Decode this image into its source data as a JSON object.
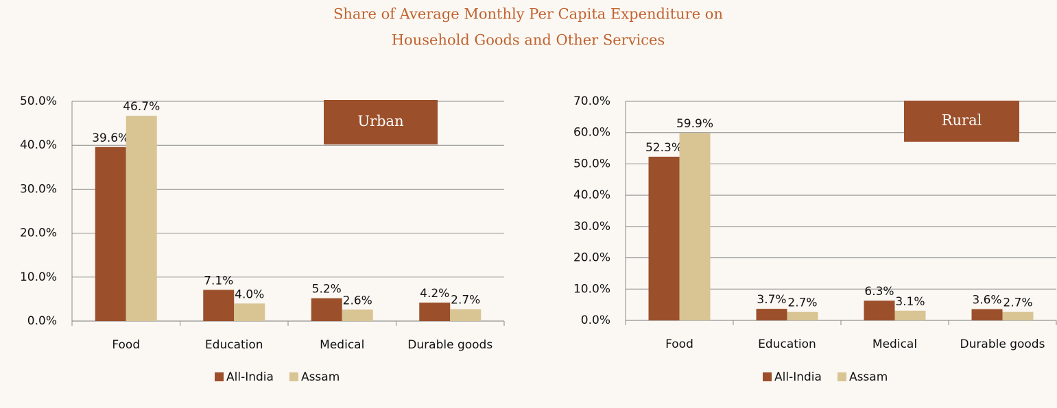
{
  "title": [
    "Share of Average Monthly Per Capita Expenditure on",
    "Household Goods and Other Services"
  ],
  "chart_data": [
    {
      "type": "bar",
      "annotation": "Urban",
      "categories": [
        "Food",
        "Education",
        "Medical",
        "Durable goods"
      ],
      "series": [
        {
          "name": "All-India",
          "color": "#9b4f2b",
          "values": [
            39.6,
            7.1,
            5.2,
            4.2
          ],
          "value_labels": [
            "39.6%",
            "7.1%",
            "5.2%",
            "4.2%"
          ]
        },
        {
          "name": "Assam",
          "color": "#d9c494",
          "values": [
            46.7,
            4.0,
            2.6,
            2.7
          ],
          "value_labels": [
            "46.7%",
            "4.0%",
            "2.6%",
            "2.7%"
          ]
        }
      ],
      "ylim": [
        0,
        50
      ],
      "yticks": [
        {
          "value": 0,
          "label": "0.0%"
        },
        {
          "value": 10,
          "label": "10.0%"
        },
        {
          "value": 20,
          "label": "20.0%"
        },
        {
          "value": 30,
          "label": "30.0%"
        },
        {
          "value": 40,
          "label": "40.0%"
        },
        {
          "value": 50,
          "label": "50.0%"
        }
      ],
      "grid": true,
      "legend": "bottom"
    },
    {
      "type": "bar",
      "annotation": "Rural",
      "categories": [
        "Food",
        "Education",
        "Medical",
        "Durable goods"
      ],
      "series": [
        {
          "name": "All-India",
          "color": "#9b4f2b",
          "values": [
            52.3,
            3.7,
            6.3,
            3.6
          ],
          "value_labels": [
            "52.3%",
            "3.7%",
            "6.3%",
            "3.6%"
          ]
        },
        {
          "name": "Assam",
          "color": "#d9c494",
          "values": [
            59.9,
            2.7,
            3.1,
            2.7
          ],
          "value_labels": [
            "59.9%",
            "2.7%",
            "3.1%",
            "2.7%"
          ]
        }
      ],
      "ylim": [
        0,
        70
      ],
      "yticks": [
        {
          "value": 0,
          "label": "0.0%"
        },
        {
          "value": 10,
          "label": "10.0%"
        },
        {
          "value": 20,
          "label": "20.0%"
        },
        {
          "value": 30,
          "label": "30.0%"
        },
        {
          "value": 40,
          "label": "40.0%"
        },
        {
          "value": 50,
          "label": "50.0%"
        },
        {
          "value": 60,
          "label": "60.0%"
        },
        {
          "value": 70,
          "label": "70.0%"
        }
      ],
      "grid": true,
      "legend": "bottom"
    }
  ]
}
